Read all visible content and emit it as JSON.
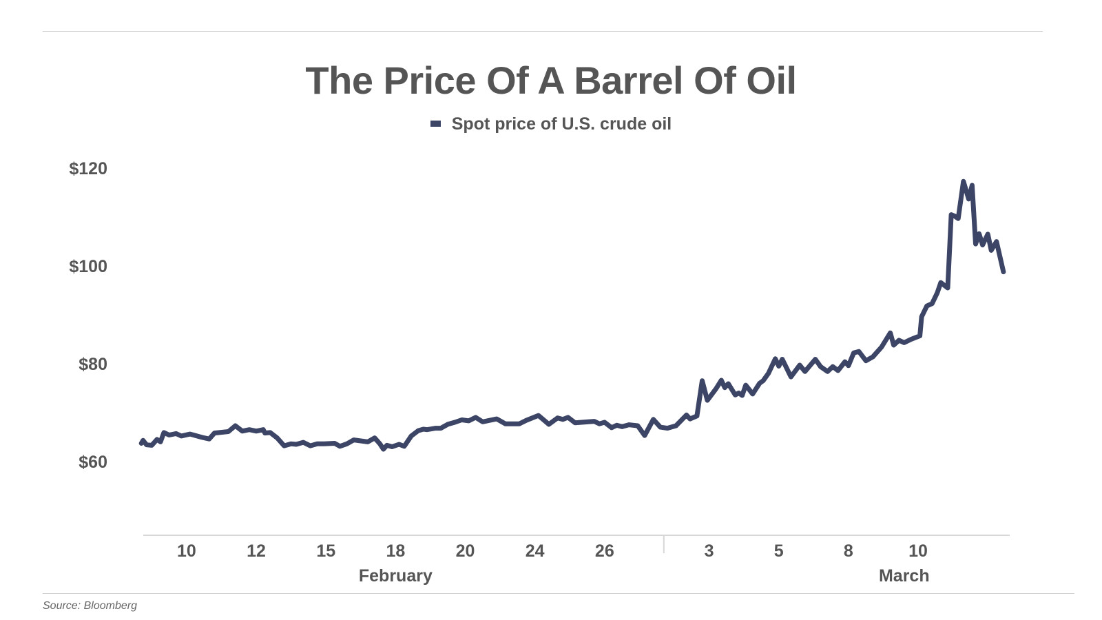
{
  "chart_data": {
    "type": "line",
    "title": "The Price Of A Barrel Of Oil",
    "source": "Source: Bloomberg",
    "xlabel": "",
    "ylabel": "",
    "series": [
      {
        "name": "Spot price of U.S. crude oil",
        "color": "#3d4566",
        "points": [
          [
            0.0,
            63.7
          ],
          [
            0.05,
            64.3
          ],
          [
            0.15,
            63.4
          ],
          [
            0.3,
            63.3
          ],
          [
            0.45,
            64.5
          ],
          [
            0.55,
            64.0
          ],
          [
            0.65,
            65.9
          ],
          [
            0.8,
            65.4
          ],
          [
            1.0,
            65.7
          ],
          [
            1.15,
            65.2
          ],
          [
            1.4,
            65.6
          ],
          [
            1.75,
            64.9
          ],
          [
            1.95,
            64.6
          ],
          [
            2.1,
            65.8
          ],
          [
            2.5,
            66.1
          ],
          [
            2.7,
            67.3
          ],
          [
            2.9,
            66.2
          ],
          [
            3.1,
            66.5
          ],
          [
            3.3,
            66.2
          ],
          [
            3.5,
            66.5
          ],
          [
            3.55,
            65.8
          ],
          [
            3.7,
            65.9
          ],
          [
            3.9,
            64.8
          ],
          [
            4.1,
            63.2
          ],
          [
            4.3,
            63.6
          ],
          [
            4.45,
            63.5
          ],
          [
            4.65,
            63.9
          ],
          [
            4.85,
            63.2
          ],
          [
            5.05,
            63.6
          ],
          [
            5.25,
            63.6
          ],
          [
            5.55,
            63.7
          ],
          [
            5.7,
            63.1
          ],
          [
            5.9,
            63.6
          ],
          [
            6.1,
            64.4
          ],
          [
            6.5,
            64.0
          ],
          [
            6.7,
            64.8
          ],
          [
            6.85,
            63.6
          ],
          [
            6.95,
            62.5
          ],
          [
            7.05,
            63.3
          ],
          [
            7.2,
            63.0
          ],
          [
            7.4,
            63.5
          ],
          [
            7.55,
            63.1
          ],
          [
            7.75,
            65.2
          ],
          [
            7.95,
            66.3
          ],
          [
            8.1,
            66.6
          ],
          [
            8.2,
            66.5
          ],
          [
            8.45,
            66.8
          ],
          [
            8.6,
            66.8
          ],
          [
            8.8,
            67.6
          ],
          [
            9.0,
            68.0
          ],
          [
            9.2,
            68.5
          ],
          [
            9.4,
            68.3
          ],
          [
            9.6,
            69.0
          ],
          [
            9.8,
            68.1
          ],
          [
            10.2,
            68.7
          ],
          [
            10.45,
            67.7
          ],
          [
            10.85,
            67.7
          ],
          [
            11.05,
            68.4
          ],
          [
            11.4,
            69.4
          ],
          [
            11.7,
            67.6
          ],
          [
            11.95,
            68.9
          ],
          [
            12.1,
            68.6
          ],
          [
            12.25,
            69.0
          ],
          [
            12.45,
            67.9
          ],
          [
            13.0,
            68.2
          ],
          [
            13.15,
            67.7
          ],
          [
            13.3,
            68.0
          ],
          [
            13.5,
            66.9
          ],
          [
            13.65,
            67.4
          ],
          [
            13.8,
            67.1
          ],
          [
            14.0,
            67.5
          ],
          [
            14.25,
            67.3
          ],
          [
            14.45,
            65.3
          ],
          [
            14.7,
            68.6
          ],
          [
            14.9,
            67.0
          ],
          [
            15.1,
            66.8
          ],
          [
            15.35,
            67.3
          ],
          [
            15.65,
            69.5
          ],
          [
            15.75,
            68.7
          ],
          [
            15.95,
            69.3
          ],
          [
            16.1,
            76.5
          ],
          [
            16.25,
            72.5
          ],
          [
            16.5,
            74.9
          ],
          [
            16.65,
            76.6
          ],
          [
            16.75,
            75.1
          ],
          [
            16.85,
            75.9
          ],
          [
            17.05,
            73.6
          ],
          [
            17.15,
            74.0
          ],
          [
            17.25,
            73.5
          ],
          [
            17.35,
            75.6
          ],
          [
            17.55,
            73.8
          ],
          [
            17.75,
            76.0
          ],
          [
            17.85,
            76.5
          ],
          [
            18.0,
            78.0
          ],
          [
            18.2,
            81.0
          ],
          [
            18.3,
            79.5
          ],
          [
            18.4,
            80.9
          ],
          [
            18.65,
            77.3
          ],
          [
            18.9,
            79.7
          ],
          [
            19.05,
            78.4
          ],
          [
            19.35,
            80.9
          ],
          [
            19.5,
            79.4
          ],
          [
            19.7,
            78.4
          ],
          [
            19.85,
            79.4
          ],
          [
            20.0,
            78.6
          ],
          [
            20.2,
            80.4
          ],
          [
            20.3,
            79.6
          ],
          [
            20.45,
            82.2
          ],
          [
            20.6,
            82.5
          ],
          [
            20.8,
            80.6
          ],
          [
            21.0,
            81.4
          ],
          [
            21.25,
            83.4
          ],
          [
            21.5,
            86.3
          ],
          [
            21.6,
            83.8
          ],
          [
            21.75,
            84.8
          ],
          [
            21.9,
            84.3
          ],
          [
            22.1,
            85.0
          ],
          [
            22.35,
            85.7
          ],
          [
            22.4,
            89.6
          ],
          [
            22.55,
            91.8
          ],
          [
            22.7,
            92.3
          ],
          [
            22.85,
            94.5
          ],
          [
            22.95,
            96.6
          ],
          [
            23.15,
            95.5
          ],
          [
            23.25,
            110.5
          ],
          [
            23.35,
            110.2
          ],
          [
            23.45,
            109.7
          ],
          [
            23.6,
            117.3
          ],
          [
            23.75,
            113.7
          ],
          [
            23.85,
            116.5
          ],
          [
            23.95,
            104.5
          ],
          [
            24.05,
            106.6
          ],
          [
            24.15,
            104.3
          ],
          [
            24.3,
            106.5
          ],
          [
            24.4,
            103.2
          ],
          [
            24.55,
            105.0
          ],
          [
            24.75,
            98.8
          ]
        ]
      }
    ],
    "y_ticks": [
      {
        "value": 60,
        "label": "$60"
      },
      {
        "value": 80,
        "label": "$80"
      },
      {
        "value": 100,
        "label": "$100"
      },
      {
        "value": 120,
        "label": "$120"
      }
    ],
    "x_ticks": [
      {
        "value": 1.3,
        "label": "10"
      },
      {
        "value": 3.3,
        "label": "12"
      },
      {
        "value": 5.3,
        "label": "15"
      },
      {
        "value": 7.3,
        "label": "18"
      },
      {
        "value": 9.3,
        "label": "20"
      },
      {
        "value": 11.3,
        "label": "24"
      },
      {
        "value": 13.3,
        "label": "26"
      },
      {
        "value": 16.3,
        "label": "3"
      },
      {
        "value": 18.3,
        "label": "5"
      },
      {
        "value": 20.3,
        "label": "8"
      },
      {
        "value": 22.3,
        "label": "10"
      }
    ],
    "x_groups": [
      {
        "label": "February",
        "center": 7.3
      },
      {
        "label": "March",
        "center": 21.9
      }
    ],
    "x_group_divider": 15.0,
    "xlim": [
      -0.3,
      24.85
    ],
    "ylim": [
      47,
      122
    ],
    "grid": false,
    "legend_position": "top-center"
  }
}
